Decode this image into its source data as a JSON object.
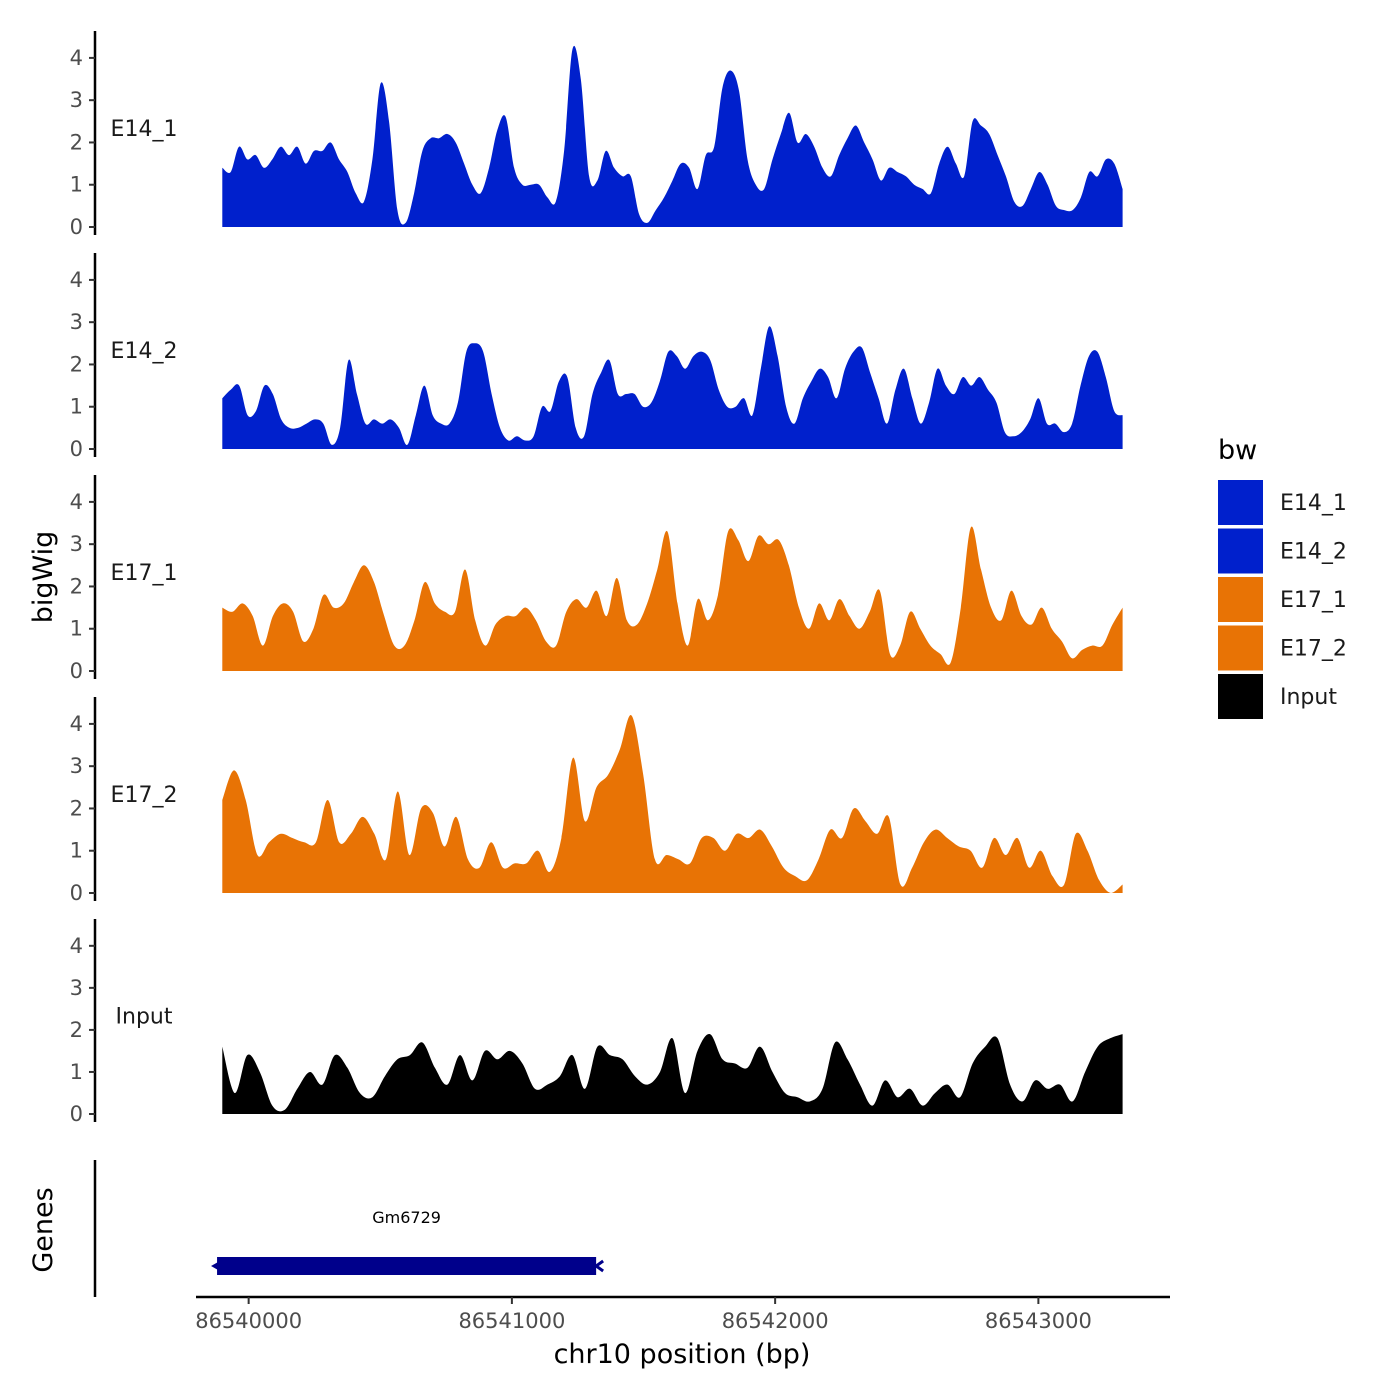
{
  "chart_data": {
    "type": "area",
    "chromosome": "chr10",
    "xlabel": "chr10 position (bp)",
    "ylabel": "bigWig",
    "genes_label": "Genes",
    "xlim": [
      86539800,
      86543500
    ],
    "data_range": [
      86539900,
      86543320
    ],
    "xticks": [
      86540000,
      86541000,
      86542000,
      86543000
    ],
    "xtick_labels": [
      "86540000",
      "86541000",
      "86542000",
      "86543000"
    ],
    "ylim": [
      0,
      4.4
    ],
    "yticks": [
      0,
      1,
      2,
      3,
      4
    ],
    "ytick_labels": [
      "0",
      "1",
      "2",
      "3",
      "4"
    ],
    "legend": {
      "title": "bw",
      "entries": [
        {
          "label": "E14_1",
          "color": "#0020CC"
        },
        {
          "label": "E14_2",
          "color": "#0020CC"
        },
        {
          "label": "E17_1",
          "color": "#E87305"
        },
        {
          "label": "E17_2",
          "color": "#E87305"
        },
        {
          "label": "Input",
          "color": "#000000"
        }
      ]
    },
    "series": [
      {
        "name": "E14_1",
        "color": "#0020CC",
        "values": [
          1.4,
          1.3,
          1.9,
          1.6,
          1.7,
          1.4,
          1.6,
          1.9,
          1.7,
          1.9,
          1.5,
          1.8,
          1.8,
          2.0,
          1.6,
          1.3,
          0.8,
          0.6,
          1.6,
          3.4,
          2.5,
          0.4,
          0.1,
          0.8,
          1.8,
          2.1,
          2.1,
          2.2,
          2.0,
          1.5,
          1.0,
          0.8,
          1.4,
          2.3,
          2.6,
          1.4,
          1.0,
          1.0,
          1.0,
          0.7,
          0.6,
          1.8,
          4.2,
          3.5,
          1.2,
          1.1,
          1.8,
          1.4,
          1.2,
          1.2,
          0.3,
          0.1,
          0.4,
          0.7,
          1.1,
          1.5,
          1.4,
          0.9,
          1.7,
          1.9,
          3.3,
          3.7,
          3.2,
          1.6,
          1.0,
          0.9,
          1.6,
          2.2,
          2.7,
          2.0,
          2.2,
          1.9,
          1.4,
          1.2,
          1.7,
          2.1,
          2.4,
          2.0,
          1.6,
          1.1,
          1.4,
          1.3,
          1.2,
          1.0,
          0.9,
          0.8,
          1.5,
          1.9,
          1.5,
          1.2,
          2.5,
          2.4,
          2.2,
          1.7,
          1.2,
          0.6,
          0.5,
          0.9,
          1.3,
          1.0,
          0.5,
          0.4,
          0.4,
          0.7,
          1.3,
          1.2,
          1.6,
          1.5,
          0.9
        ],
        "value_labels": [
          "1.4",
          "1.3",
          "1.9",
          "1.6",
          "1.7",
          "1.4",
          "1.6",
          "1.9",
          "1.7",
          "1.9",
          "1.5",
          "1.8",
          "1.8",
          "2.0",
          "1.6",
          "1.3",
          "0.8",
          "0.6",
          "1.6",
          "3.4",
          "2.5",
          "0.4",
          "0.1",
          "0.8",
          "1.8",
          "2.1",
          "2.1",
          "2.2",
          "2.0",
          "1.5",
          "1.0",
          "0.8",
          "1.4",
          "2.3",
          "2.6",
          "1.4",
          "1.0",
          "1.0",
          "1.0",
          "0.7",
          "0.6",
          "1.8",
          "4.2",
          "3.5",
          "1.2",
          "1.1",
          "1.8",
          "1.4",
          "1.2",
          "1.2",
          "0.3",
          "0.1",
          "0.4",
          "0.7",
          "1.1",
          "1.5",
          "1.4",
          "0.9",
          "1.7",
          "1.9",
          "3.3",
          "3.7",
          "3.2",
          "1.6",
          "1.0",
          "0.9",
          "1.6",
          "2.2",
          "2.7",
          "2.0",
          "2.2",
          "1.9",
          "1.4",
          "1.2",
          "1.7",
          "2.1",
          "2.4",
          "2.0",
          "1.6",
          "1.1",
          "1.4",
          "1.3",
          "1.2",
          "1.0",
          "0.9",
          "0.8",
          "1.5",
          "1.9",
          "1.5",
          "1.2",
          "2.5",
          "2.4",
          "2.2",
          "1.7",
          "1.2",
          "0.6",
          "0.5",
          "0.9",
          "1.3",
          "1.0",
          "0.5",
          "0.4",
          "0.4",
          "0.7",
          "1.3",
          "1.2",
          "1.6",
          "1.5",
          "0.9"
        ]
      },
      {
        "name": "E14_2",
        "color": "#0020CC",
        "values": [
          1.2,
          1.4,
          1.5,
          0.8,
          0.9,
          1.5,
          1.3,
          0.7,
          0.5,
          0.5,
          0.6,
          0.7,
          0.6,
          0.1,
          0.5,
          2.1,
          1.3,
          0.6,
          0.7,
          0.6,
          0.7,
          0.5,
          0.1,
          0.8,
          1.5,
          0.8,
          0.6,
          0.6,
          1.1,
          2.3,
          2.5,
          2.3,
          1.3,
          0.5,
          0.2,
          0.3,
          0.2,
          0.3,
          1.0,
          0.9,
          1.6,
          1.7,
          0.5,
          0.3,
          1.3,
          1.8,
          2.1,
          1.3,
          1.3,
          1.3,
          1.0,
          1.1,
          1.6,
          2.3,
          2.2,
          1.9,
          2.2,
          2.3,
          2.1,
          1.4,
          1.0,
          1.0,
          1.2,
          0.8,
          1.9,
          2.9,
          2.2,
          1.0,
          0.6,
          1.2,
          1.6,
          1.9,
          1.7,
          1.2,
          1.9,
          2.3,
          2.4,
          1.8,
          1.2,
          0.6,
          1.4,
          1.9,
          1.2,
          0.6,
          1.1,
          1.9,
          1.5,
          1.3,
          1.7,
          1.5,
          1.7,
          1.4,
          1.1,
          0.4,
          0.3,
          0.4,
          0.7,
          1.2,
          0.6,
          0.6,
          0.4,
          0.6,
          1.5,
          2.2,
          2.3,
          1.7,
          0.9,
          0.8
        ],
        "value_labels": [
          "1.2",
          "1.4",
          "1.5",
          "0.8",
          "0.9",
          "1.5",
          "1.3",
          "0.7",
          "0.5",
          "0.5",
          "0.6",
          "0.7",
          "0.6",
          "0.1",
          "0.5",
          "2.1",
          "1.3",
          "0.6",
          "0.7",
          "0.6",
          "0.7",
          "0.5",
          "0.1",
          "0.8",
          "1.5",
          "0.8",
          "0.6",
          "0.6",
          "1.1",
          "2.3",
          "2.5",
          "2.3",
          "1.3",
          "0.5",
          "0.2",
          "0.3",
          "0.2",
          "0.3",
          "1.0",
          "0.9",
          "1.6",
          "1.7",
          "0.5",
          "0.3",
          "1.3",
          "1.8",
          "2.1",
          "1.3",
          "1.3",
          "1.3",
          "1.0",
          "1.1",
          "1.6",
          "2.3",
          "2.2",
          "1.9",
          "2.2",
          "2.3",
          "2.1",
          "1.4",
          "1.0",
          "1.0",
          "1.2",
          "0.8",
          "1.9",
          "2.9",
          "2.2",
          "1.0",
          "0.6",
          "1.2",
          "1.6",
          "1.9",
          "1.7",
          "1.2",
          "1.9",
          "2.3",
          "2.4",
          "1.8",
          "1.2",
          "0.6",
          "1.4",
          "1.9",
          "1.2",
          "0.6",
          "1.1",
          "1.9",
          "1.5",
          "1.3",
          "1.7",
          "1.5",
          "1.7",
          "1.4",
          "1.1",
          "0.4",
          "0.3",
          "0.4",
          "0.7",
          "1.2",
          "0.6",
          "0.6",
          "0.4",
          "0.6",
          "1.5",
          "2.2",
          "2.3",
          "1.7",
          "0.9",
          "0.8"
        ]
      },
      {
        "name": "E17_1",
        "color": "#E87305",
        "values": [
          1.5,
          1.4,
          1.6,
          1.3,
          0.6,
          1.3,
          1.6,
          1.4,
          0.7,
          1.0,
          1.8,
          1.5,
          1.6,
          2.1,
          2.5,
          2.1,
          1.3,
          0.6,
          0.6,
          1.2,
          2.1,
          1.6,
          1.4,
          1.4,
          2.4,
          1.2,
          0.6,
          1.1,
          1.3,
          1.3,
          1.5,
          1.2,
          0.7,
          0.6,
          1.4,
          1.7,
          1.5,
          1.9,
          1.3,
          2.2,
          1.2,
          1.1,
          1.6,
          2.4,
          3.3,
          1.6,
          0.6,
          1.7,
          1.2,
          1.8,
          3.3,
          3.1,
          2.6,
          3.2,
          3.0,
          3.1,
          2.5,
          1.5,
          1.0,
          1.6,
          1.2,
          1.7,
          1.3,
          1.0,
          1.4,
          1.9,
          0.4,
          0.6,
          1.4,
          1.0,
          0.6,
          0.4,
          0.2,
          1.5,
          3.4,
          2.4,
          1.5,
          1.2,
          1.9,
          1.3,
          1.1,
          1.5,
          1.0,
          0.7,
          0.3,
          0.5,
          0.6,
          0.6,
          1.1,
          1.5
        ]
      },
      {
        "name": "E17_2",
        "color": "#E87305",
        "values": [
          2.2,
          2.9,
          2.2,
          0.9,
          1.2,
          1.4,
          1.3,
          1.2,
          1.2,
          2.2,
          1.2,
          1.4,
          1.8,
          1.4,
          0.8,
          2.4,
          0.9,
          2.0,
          1.9,
          1.1,
          1.8,
          0.8,
          0.6,
          1.2,
          0.6,
          0.7,
          0.7,
          1.0,
          0.5,
          1.3,
          3.2,
          1.7,
          2.5,
          2.8,
          3.4,
          4.2,
          2.8,
          0.8,
          0.9,
          0.8,
          0.7,
          1.3,
          1.3,
          1.0,
          1.4,
          1.3,
          1.5,
          1.1,
          0.6,
          0.4,
          0.3,
          0.8,
          1.5,
          1.3,
          2.0,
          1.7,
          1.4,
          1.8,
          0.2,
          0.6,
          1.2,
          1.5,
          1.3,
          1.1,
          1.0,
          0.6,
          1.3,
          0.9,
          1.3,
          0.6,
          1.0,
          0.4,
          0.2,
          1.4,
          1.0,
          0.3,
          0.0,
          0.2
        ]
      },
      {
        "name": "Input",
        "color": "#000000",
        "values": [
          1.6,
          0.5,
          1.4,
          1.0,
          0.2,
          0.1,
          0.6,
          1.0,
          0.7,
          1.4,
          1.1,
          0.5,
          0.4,
          0.9,
          1.3,
          1.4,
          1.7,
          1.1,
          0.7,
          1.4,
          0.8,
          1.5,
          1.3,
          1.5,
          1.2,
          0.6,
          0.7,
          0.9,
          1.4,
          0.6,
          1.6,
          1.4,
          1.3,
          0.9,
          0.7,
          1.0,
          1.8,
          0.5,
          1.5,
          1.9,
          1.3,
          1.2,
          1.1,
          1.6,
          1.0,
          0.5,
          0.4,
          0.3,
          0.6,
          1.7,
          1.3,
          0.7,
          0.2,
          0.8,
          0.4,
          0.6,
          0.2,
          0.5,
          0.7,
          0.4,
          1.2,
          1.6,
          1.8,
          0.7,
          0.3,
          0.8,
          0.6,
          0.7,
          0.3,
          1.0,
          1.6,
          1.8,
          1.9
        ]
      }
    ],
    "genes": [
      {
        "name": "Gm6729",
        "start": 86539880,
        "end": 86541320,
        "strand": "-",
        "color": "#00008B"
      }
    ]
  }
}
